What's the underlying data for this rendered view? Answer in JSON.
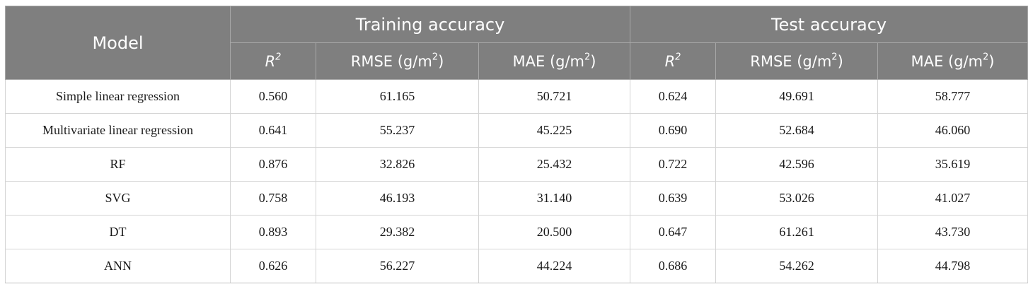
{
  "table": {
    "header": {
      "model": "Model",
      "training_group": "Training accuracy",
      "test_group": "Test accuracy",
      "r2_base": "R",
      "r2_sup": "2",
      "rmse_base": "RMSE (g/m",
      "mae_base": "MAE (g/m",
      "unit_sup": "2",
      "unit_close": ")"
    },
    "rows": [
      {
        "model": "Simple linear regression",
        "train_r2": "0.560",
        "train_rmse": "61.165",
        "train_mae": "50.721",
        "test_r2": "0.624",
        "test_rmse": "49.691",
        "test_mae": "58.777"
      },
      {
        "model": "Multivariate linear regression",
        "train_r2": "0.641",
        "train_rmse": "55.237",
        "train_mae": "45.225",
        "test_r2": "0.690",
        "test_rmse": "52.684",
        "test_mae": "46.060"
      },
      {
        "model": "RF",
        "train_r2": "0.876",
        "train_rmse": "32.826",
        "train_mae": "25.432",
        "test_r2": "0.722",
        "test_rmse": "42.596",
        "test_mae": "35.619"
      },
      {
        "model": "SVG",
        "train_r2": "0.758",
        "train_rmse": "46.193",
        "train_mae": "31.140",
        "test_r2": "0.639",
        "test_rmse": "53.026",
        "test_mae": "41.027"
      },
      {
        "model": "DT",
        "train_r2": "0.893",
        "train_rmse": "29.382",
        "train_mae": "20.500",
        "test_r2": "0.647",
        "test_rmse": "61.261",
        "test_mae": "43.730"
      },
      {
        "model": "ANN",
        "train_r2": "0.626",
        "train_rmse": "56.227",
        "train_mae": "44.224",
        "test_r2": "0.686",
        "test_rmse": "54.262",
        "test_mae": "44.798"
      }
    ]
  },
  "colors": {
    "header_background": "#7f7f7f",
    "header_text": "#ffffff",
    "cell_border": "#d4d4d4",
    "body_text": "#1a1a1a"
  }
}
